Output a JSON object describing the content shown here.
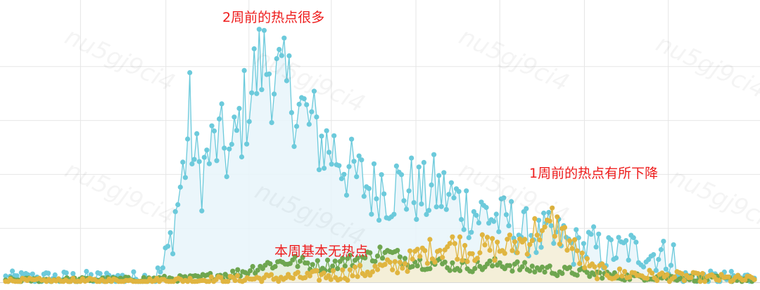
{
  "chart_data": {
    "type": "line",
    "title": "",
    "xlabel": "",
    "ylabel": "",
    "grid": true,
    "legend": "none",
    "x_range": [
      0,
      1000
    ],
    "ylim": [
      0,
      100
    ],
    "x_grid_positions": [
      100,
      214,
      325,
      435,
      548,
      660,
      773,
      885
    ],
    "y_grid_values": [
      20,
      40,
      60,
      80
    ],
    "series": [
      {
        "color": "#6ccadb",
        "fill": "#e8f5fa",
        "points": [
          [
            0,
            1.5
          ],
          [
            60,
            1.5
          ],
          [
            120,
            1.5
          ],
          [
            180,
            1.5
          ],
          [
            200,
            2
          ],
          [
            210,
            5
          ],
          [
            220,
            15
          ],
          [
            230,
            30
          ],
          [
            240,
            45
          ],
          [
            246,
            62
          ],
          [
            252,
            45
          ],
          [
            262,
            40
          ],
          [
            272,
            47
          ],
          [
            282,
            52
          ],
          [
            292,
            50
          ],
          [
            302,
            46
          ],
          [
            312,
            58
          ],
          [
            322,
            66
          ],
          [
            332,
            75
          ],
          [
            342,
            82
          ],
          [
            352,
            80
          ],
          [
            362,
            75
          ],
          [
            372,
            72
          ],
          [
            382,
            70
          ],
          [
            392,
            65
          ],
          [
            402,
            60
          ],
          [
            412,
            57
          ],
          [
            422,
            52
          ],
          [
            432,
            50
          ],
          [
            442,
            48
          ],
          [
            452,
            45
          ],
          [
            462,
            40
          ],
          [
            472,
            38
          ],
          [
            482,
            36
          ],
          [
            492,
            34
          ],
          [
            502,
            37
          ],
          [
            512,
            33
          ],
          [
            522,
            36
          ],
          [
            532,
            34
          ],
          [
            542,
            35
          ],
          [
            552,
            33
          ],
          [
            562,
            32
          ],
          [
            572,
            35
          ],
          [
            582,
            33
          ],
          [
            592,
            32
          ],
          [
            602,
            30
          ],
          [
            612,
            28
          ],
          [
            622,
            27
          ],
          [
            632,
            25
          ],
          [
            642,
            26
          ],
          [
            652,
            24
          ],
          [
            662,
            22
          ],
          [
            672,
            23
          ],
          [
            682,
            20
          ],
          [
            692,
            18
          ],
          [
            702,
            19
          ],
          [
            712,
            16
          ],
          [
            722,
            18
          ],
          [
            732,
            15
          ],
          [
            742,
            17
          ],
          [
            752,
            14
          ],
          [
            762,
            13
          ],
          [
            772,
            12
          ],
          [
            782,
            14
          ],
          [
            792,
            12
          ],
          [
            802,
            10
          ],
          [
            812,
            12
          ],
          [
            822,
            11
          ],
          [
            832,
            13
          ],
          [
            842,
            11
          ],
          [
            852,
            12
          ],
          [
            862,
            10
          ],
          [
            872,
            11
          ],
          [
            882,
            9
          ],
          [
            892,
            10
          ],
          [
            896,
            2
          ],
          [
            920,
            1.5
          ],
          [
            960,
            1.5
          ],
          [
            1000,
            1.5
          ]
        ]
      },
      {
        "color": "#e0b540",
        "fill": "#f7eed6",
        "points": [
          [
            0,
            0.5
          ],
          [
            180,
            0.5
          ],
          [
            300,
            1
          ],
          [
            400,
            2
          ],
          [
            450,
            3
          ],
          [
            480,
            4
          ],
          [
            500,
            5
          ],
          [
            520,
            6
          ],
          [
            540,
            8
          ],
          [
            560,
            11
          ],
          [
            580,
            13
          ],
          [
            600,
            14
          ],
          [
            620,
            12
          ],
          [
            640,
            13
          ],
          [
            660,
            12
          ],
          [
            680,
            14
          ],
          [
            700,
            16
          ],
          [
            710,
            21
          ],
          [
            720,
            17
          ],
          [
            730,
            23
          ],
          [
            740,
            19
          ],
          [
            750,
            16
          ],
          [
            760,
            12
          ],
          [
            770,
            8
          ],
          [
            780,
            5
          ],
          [
            790,
            4
          ],
          [
            800,
            4
          ],
          [
            810,
            3
          ],
          [
            820,
            3
          ],
          [
            840,
            3
          ],
          [
            860,
            2.5
          ],
          [
            880,
            2
          ],
          [
            900,
            2
          ],
          [
            940,
            1.5
          ],
          [
            1000,
            1
          ]
        ]
      },
      {
        "color": "#6ea650",
        "fill": "#e4eedb",
        "points": [
          [
            0,
            0.8
          ],
          [
            150,
            1
          ],
          [
            250,
            1.5
          ],
          [
            300,
            3
          ],
          [
            320,
            4
          ],
          [
            340,
            6
          ],
          [
            360,
            7
          ],
          [
            380,
            8
          ],
          [
            400,
            7
          ],
          [
            420,
            6
          ],
          [
            440,
            7
          ],
          [
            460,
            8
          ],
          [
            480,
            9
          ],
          [
            500,
            11
          ],
          [
            520,
            10
          ],
          [
            540,
            8
          ],
          [
            560,
            7
          ],
          [
            580,
            7
          ],
          [
            600,
            6
          ],
          [
            620,
            6
          ],
          [
            640,
            6
          ],
          [
            660,
            7
          ],
          [
            680,
            6
          ],
          [
            700,
            5
          ],
          [
            720,
            5
          ],
          [
            740,
            4
          ],
          [
            760,
            4
          ],
          [
            780,
            3
          ],
          [
            800,
            3
          ],
          [
            820,
            2
          ],
          [
            850,
            2
          ],
          [
            880,
            2
          ],
          [
            920,
            1.5
          ],
          [
            1000,
            1
          ]
        ]
      }
    ],
    "annotations": [
      {
        "text": "2周前的热点很多"
      },
      {
        "text": "1周前的热点有所下降"
      },
      {
        "text": "本周基本无热点"
      }
    ],
    "watermark": "nu5gj9ci4"
  }
}
